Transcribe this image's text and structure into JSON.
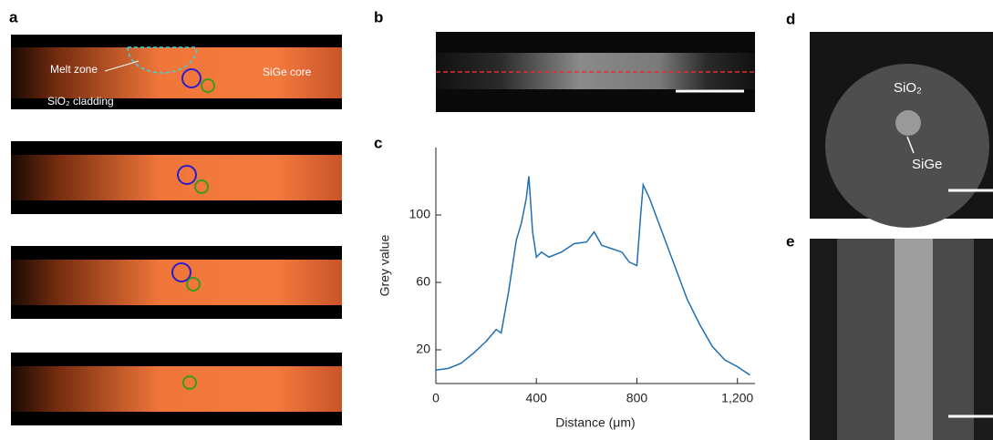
{
  "panels": {
    "a": "a",
    "b": "b",
    "c": "c",
    "d": "d",
    "e": "e"
  },
  "annotations": {
    "melt_zone": "Melt zone",
    "sige_core": "SiGe core",
    "sio2_cladding": "SiO₂ cladding",
    "d_sio2": "SiO₂",
    "d_sige": "SiGe"
  },
  "chart_data": {
    "type": "line",
    "xlabel": "Distance (μm)",
    "ylabel": "Grey value",
    "x": [
      0,
      50,
      100,
      150,
      200,
      240,
      260,
      290,
      320,
      340,
      360,
      370,
      385,
      400,
      420,
      450,
      500,
      550,
      600,
      630,
      660,
      700,
      740,
      770,
      800,
      815,
      825,
      850,
      900,
      950,
      1000,
      1050,
      1100,
      1150,
      1200,
      1250
    ],
    "series": [
      {
        "color": "#1f6fb2",
        "values": [
          8,
          9,
          12,
          18,
          25,
          32,
          30,
          55,
          85,
          95,
          110,
          123,
          90,
          75,
          78,
          75,
          78,
          83,
          84,
          90,
          82,
          80,
          78,
          72,
          70,
          100,
          118,
          110,
          90,
          70,
          50,
          35,
          22,
          14,
          10,
          5
        ]
      }
    ],
    "xlim": [
      0,
      1270
    ],
    "ylim": [
      0,
      140
    ],
    "xticks": [
      0,
      400,
      800,
      {
        "value": 1200,
        "label": "1,200"
      }
    ],
    "yticks": [
      20,
      60,
      100
    ]
  }
}
